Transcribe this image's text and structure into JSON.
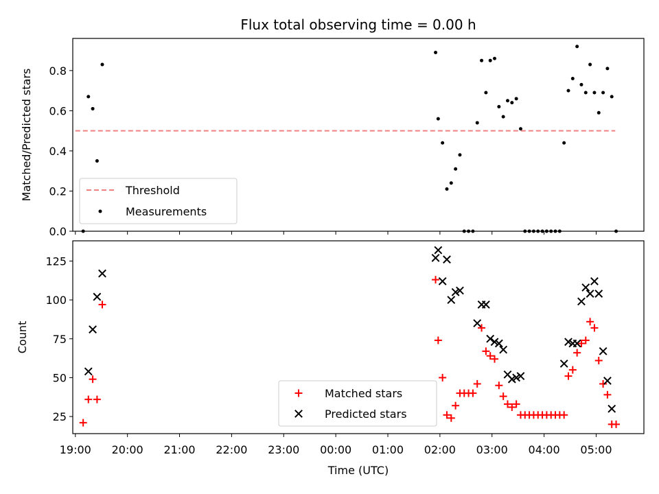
{
  "chart_data": [
    {
      "type": "scatter",
      "title": "Flux total observing time = 0.00 h",
      "xlabel": "",
      "ylabel": "Matched/Predicted stars",
      "xlim": [
        "18:57",
        "05:55"
      ],
      "ylim": [
        0,
        0.96
      ],
      "yticks": [
        "0.0",
        "0.2",
        "0.4",
        "0.6",
        "0.8"
      ],
      "legend": {
        "placement": "lower-left",
        "entries": [
          "Threshold",
          "Measurements"
        ]
      },
      "threshold": {
        "name": "Threshold",
        "value": 0.5,
        "x_range": [
          "19:00",
          "05:22"
        ],
        "color": "#f08080",
        "style": "dashed"
      },
      "series": [
        {
          "name": "Measurements",
          "color": "#000000",
          "points": [
            [
              "19:09",
              0.0
            ],
            [
              "19:15",
              0.67
            ],
            [
              "19:20",
              0.61
            ],
            [
              "19:25",
              0.35
            ],
            [
              "19:31",
              0.83
            ],
            [
              "01:55",
              0.89
            ],
            [
              "01:58",
              0.56
            ],
            [
              "02:03",
              0.44
            ],
            [
              "02:08",
              0.21
            ],
            [
              "02:13",
              0.24
            ],
            [
              "02:18",
              0.31
            ],
            [
              "02:23",
              0.38
            ],
            [
              "02:28",
              0.0
            ],
            [
              "02:33",
              0.0
            ],
            [
              "02:38",
              0.0
            ],
            [
              "02:43",
              0.54
            ],
            [
              "02:48",
              0.85
            ],
            [
              "02:53",
              0.69
            ],
            [
              "02:58",
              0.85
            ],
            [
              "03:03",
              0.86
            ],
            [
              "03:08",
              0.62
            ],
            [
              "03:13",
              0.57
            ],
            [
              "03:18",
              0.65
            ],
            [
              "03:23",
              0.64
            ],
            [
              "03:28",
              0.66
            ],
            [
              "03:33",
              0.51
            ],
            [
              "03:38",
              0.0
            ],
            [
              "03:43",
              0.0
            ],
            [
              "03:48",
              0.0
            ],
            [
              "03:53",
              0.0
            ],
            [
              "03:58",
              0.0
            ],
            [
              "04:03",
              0.0
            ],
            [
              "04:08",
              0.0
            ],
            [
              "04:13",
              0.0
            ],
            [
              "04:18",
              0.0
            ],
            [
              "04:23",
              0.44
            ],
            [
              "04:28",
              0.7
            ],
            [
              "04:33",
              0.76
            ],
            [
              "04:38",
              0.92
            ],
            [
              "04:43",
              0.73
            ],
            [
              "04:48",
              0.69
            ],
            [
              "04:53",
              0.83
            ],
            [
              "04:58",
              0.69
            ],
            [
              "05:03",
              0.59
            ],
            [
              "05:08",
              0.69
            ],
            [
              "05:13",
              0.81
            ],
            [
              "05:18",
              0.67
            ],
            [
              "05:23",
              0.0
            ]
          ]
        }
      ]
    },
    {
      "type": "scatter",
      "title": "",
      "xlabel": "Time (UTC)",
      "ylabel": "Count",
      "xlim": [
        "18:57",
        "05:55"
      ],
      "ylim": [
        14,
        138
      ],
      "yticks": [
        "25",
        "50",
        "75",
        "100",
        "125"
      ],
      "xticks": [
        "19:00",
        "20:00",
        "21:00",
        "22:00",
        "23:00",
        "00:00",
        "01:00",
        "02:00",
        "03:00",
        "04:00",
        "05:00"
      ],
      "legend": {
        "placement": "lower-center",
        "entries": [
          "Matched stars",
          "Predicted stars"
        ]
      },
      "series": [
        {
          "name": "Matched stars",
          "marker": "plus",
          "color": "#ff0000",
          "points": [
            [
              "19:09",
              21
            ],
            [
              "19:15",
              36
            ],
            [
              "19:20",
              49
            ],
            [
              "19:25",
              36
            ],
            [
              "19:31",
              97
            ],
            [
              "01:55",
              113
            ],
            [
              "01:58",
              74
            ],
            [
              "02:03",
              50
            ],
            [
              "02:08",
              26
            ],
            [
              "02:13",
              24
            ],
            [
              "02:18",
              32
            ],
            [
              "02:23",
              40
            ],
            [
              "02:28",
              40
            ],
            [
              "02:33",
              40
            ],
            [
              "02:38",
              40
            ],
            [
              "02:43",
              46
            ],
            [
              "02:48",
              82
            ],
            [
              "02:53",
              67
            ],
            [
              "02:58",
              64
            ],
            [
              "03:03",
              62
            ],
            [
              "03:08",
              45
            ],
            [
              "03:13",
              38
            ],
            [
              "03:18",
              33
            ],
            [
              "03:23",
              31
            ],
            [
              "03:28",
              33
            ],
            [
              "03:33",
              26
            ],
            [
              "03:38",
              26
            ],
            [
              "03:43",
              26
            ],
            [
              "03:48",
              26
            ],
            [
              "03:53",
              26
            ],
            [
              "03:58",
              26
            ],
            [
              "04:03",
              26
            ],
            [
              "04:08",
              26
            ],
            [
              "04:13",
              26
            ],
            [
              "04:18",
              26
            ],
            [
              "04:23",
              26
            ],
            [
              "04:28",
              51
            ],
            [
              "04:33",
              55
            ],
            [
              "04:38",
              66
            ],
            [
              "04:43",
              72
            ],
            [
              "04:48",
              74
            ],
            [
              "04:53",
              86
            ],
            [
              "04:58",
              82
            ],
            [
              "05:03",
              61
            ],
            [
              "05:08",
              46
            ],
            [
              "05:13",
              39
            ],
            [
              "05:18",
              20
            ],
            [
              "05:23",
              20
            ]
          ]
        },
        {
          "name": "Predicted stars",
          "marker": "x",
          "color": "#000000",
          "points": [
            [
              "19:15",
              54
            ],
            [
              "19:20",
              81
            ],
            [
              "19:25",
              102
            ],
            [
              "19:31",
              117
            ],
            [
              "01:55",
              127
            ],
            [
              "01:58",
              132
            ],
            [
              "02:03",
              112
            ],
            [
              "02:08",
              126
            ],
            [
              "02:13",
              100
            ],
            [
              "02:18",
              105
            ],
            [
              "02:23",
              106
            ],
            [
              "02:43",
              85
            ],
            [
              "02:48",
              97
            ],
            [
              "02:53",
              97
            ],
            [
              "02:58",
              75
            ],
            [
              "03:03",
              73
            ],
            [
              "03:08",
              72
            ],
            [
              "03:13",
              68
            ],
            [
              "03:18",
              52
            ],
            [
              "03:23",
              49
            ],
            [
              "03:28",
              50
            ],
            [
              "03:33",
              51
            ],
            [
              "04:23",
              59
            ],
            [
              "04:28",
              73
            ],
            [
              "04:33",
              72
            ],
            [
              "04:38",
              72
            ],
            [
              "04:43",
              99
            ],
            [
              "04:48",
              108
            ],
            [
              "04:53",
              104
            ],
            [
              "04:58",
              112
            ],
            [
              "05:03",
              104
            ],
            [
              "05:08",
              67
            ],
            [
              "05:13",
              48
            ],
            [
              "05:18",
              30
            ]
          ]
        }
      ]
    }
  ]
}
